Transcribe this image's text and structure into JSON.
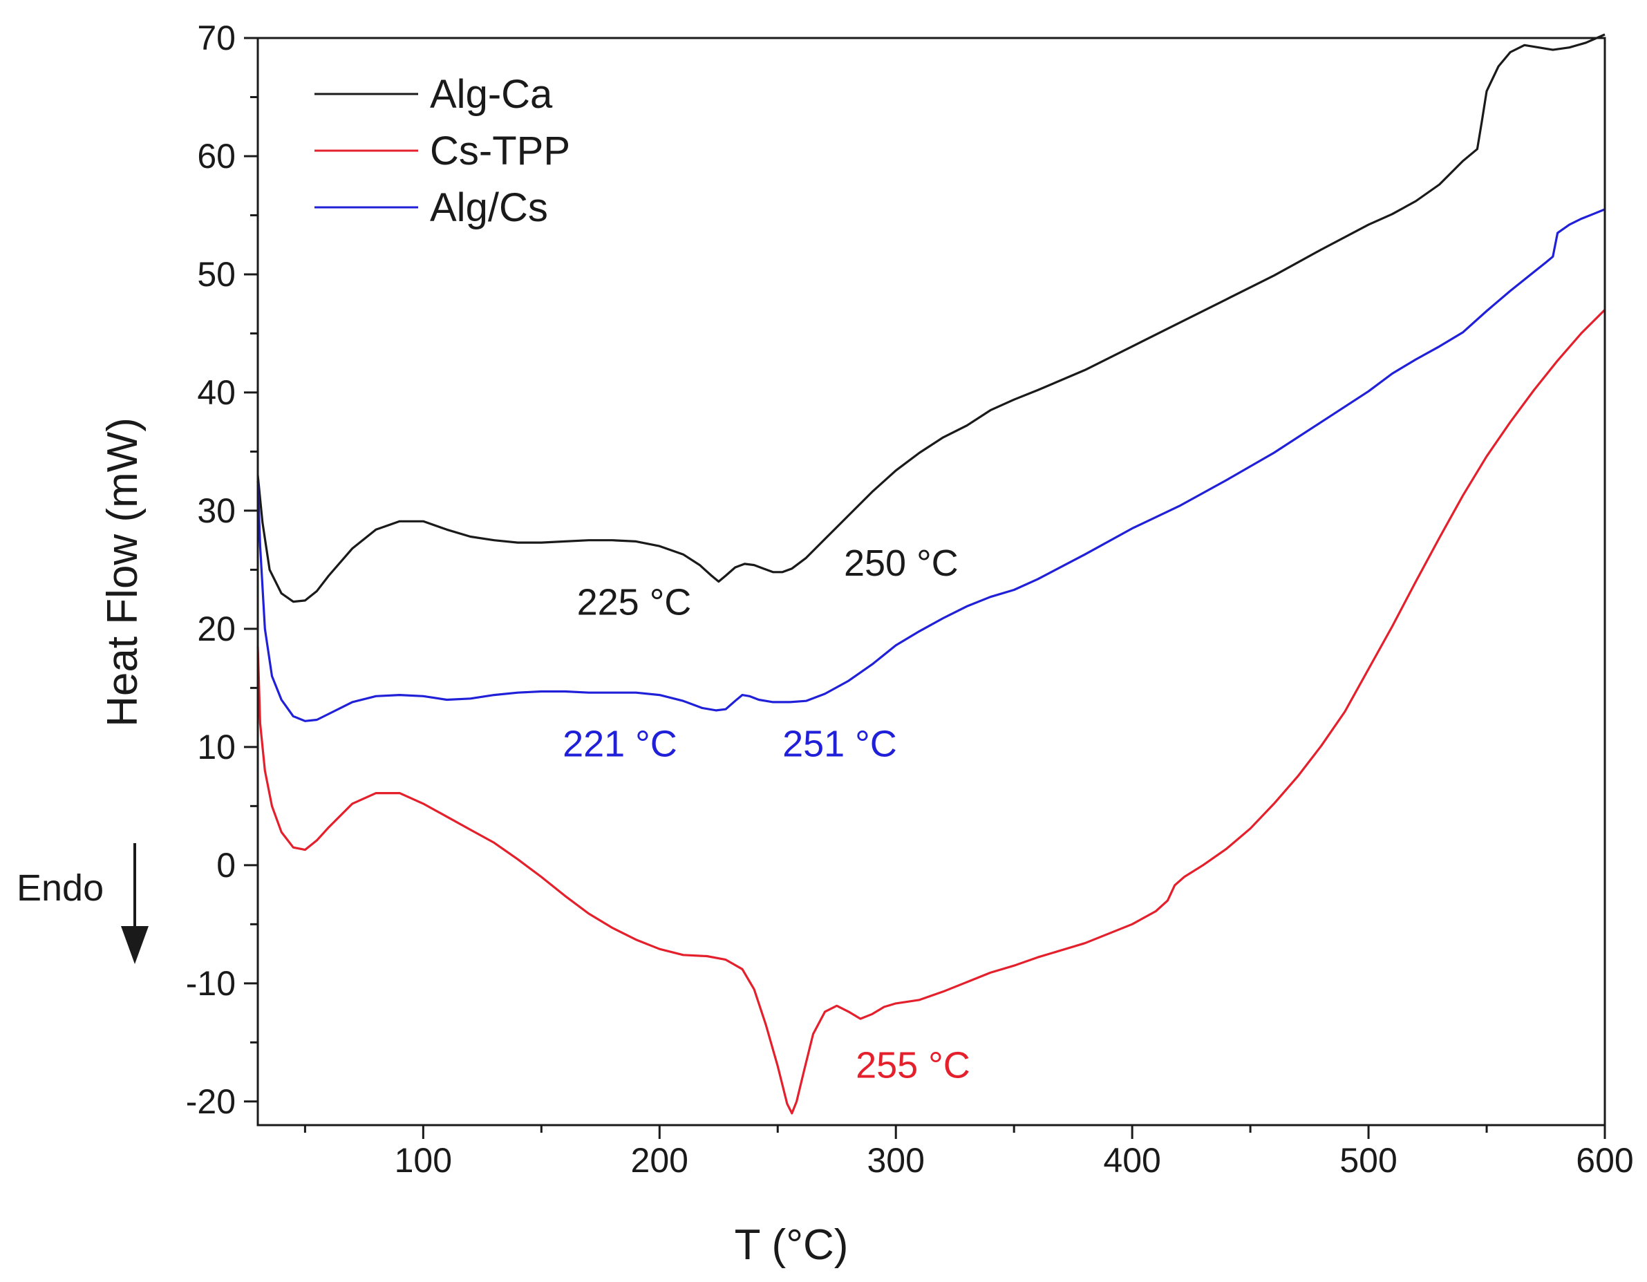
{
  "chart_data": {
    "type": "line",
    "title": "",
    "xlabel": "T (°C)",
    "ylabel": "Heat Flow (mW)",
    "xlim": [
      30,
      600
    ],
    "ylim": [
      -22,
      70
    ],
    "x_ticks": [
      "100",
      "200",
      "300",
      "400",
      "500",
      "600"
    ],
    "x_tick_values": [
      100,
      200,
      300,
      400,
      500,
      600
    ],
    "x_minor_ticks": [
      50,
      150,
      250,
      350,
      450,
      550
    ],
    "y_ticks": [
      "-20",
      "-10",
      "0",
      "10",
      "20",
      "30",
      "40",
      "50",
      "60",
      "70"
    ],
    "y_tick_values": [
      -20,
      -10,
      0,
      10,
      20,
      30,
      40,
      50,
      60,
      70
    ],
    "y_minor_ticks": [
      -15,
      -5,
      5,
      15,
      25,
      35,
      45,
      55,
      65
    ],
    "grid": false,
    "legend_position": "top-left",
    "series": [
      {
        "name": "Alg-Ca",
        "color": "#1a1a1a",
        "points": [
          [
            30,
            33
          ],
          [
            32,
            29
          ],
          [
            35,
            25
          ],
          [
            40,
            23
          ],
          [
            45,
            22.3
          ],
          [
            50,
            22.4
          ],
          [
            55,
            23.2
          ],
          [
            60,
            24.5
          ],
          [
            70,
            26.8
          ],
          [
            80,
            28.4
          ],
          [
            90,
            29.1
          ],
          [
            100,
            29.1
          ],
          [
            110,
            28.4
          ],
          [
            120,
            27.8
          ],
          [
            130,
            27.5
          ],
          [
            140,
            27.3
          ],
          [
            150,
            27.3
          ],
          [
            160,
            27.4
          ],
          [
            170,
            27.5
          ],
          [
            180,
            27.5
          ],
          [
            190,
            27.4
          ],
          [
            200,
            27
          ],
          [
            210,
            26.3
          ],
          [
            217,
            25.4
          ],
          [
            222,
            24.5
          ],
          [
            225,
            24
          ],
          [
            228,
            24.5
          ],
          [
            232,
            25.2
          ],
          [
            236,
            25.5
          ],
          [
            240,
            25.4
          ],
          [
            244,
            25.1
          ],
          [
            248,
            24.8
          ],
          [
            252,
            24.8
          ],
          [
            256,
            25.1
          ],
          [
            262,
            26
          ],
          [
            270,
            27.6
          ],
          [
            280,
            29.6
          ],
          [
            290,
            31.6
          ],
          [
            300,
            33.4
          ],
          [
            310,
            34.9
          ],
          [
            320,
            36.2
          ],
          [
            330,
            37.2
          ],
          [
            340,
            38.5
          ],
          [
            350,
            39.4
          ],
          [
            360,
            40.2
          ],
          [
            380,
            41.9
          ],
          [
            400,
            43.9
          ],
          [
            420,
            45.9
          ],
          [
            440,
            47.9
          ],
          [
            460,
            49.9
          ],
          [
            480,
            52.1
          ],
          [
            500,
            54.2
          ],
          [
            510,
            55.1
          ],
          [
            520,
            56.2
          ],
          [
            530,
            57.6
          ],
          [
            540,
            59.6
          ],
          [
            546,
            60.6
          ],
          [
            548,
            63
          ],
          [
            550,
            65.5
          ],
          [
            555,
            67.6
          ],
          [
            560,
            68.8
          ],
          [
            566,
            69.4
          ],
          [
            572,
            69.2
          ],
          [
            578,
            69
          ],
          [
            585,
            69.2
          ],
          [
            592,
            69.6
          ],
          [
            600,
            70.3
          ]
        ]
      },
      {
        "name": "Cs-TPP",
        "color": "#e4202c",
        "points": [
          [
            30,
            18.5
          ],
          [
            31,
            12
          ],
          [
            33,
            8
          ],
          [
            36,
            5
          ],
          [
            40,
            2.8
          ],
          [
            45,
            1.5
          ],
          [
            50,
            1.3
          ],
          [
            55,
            2.1
          ],
          [
            60,
            3.2
          ],
          [
            70,
            5.2
          ],
          [
            80,
            6.1
          ],
          [
            90,
            6.1
          ],
          [
            100,
            5.2
          ],
          [
            110,
            4.1
          ],
          [
            120,
            3
          ],
          [
            130,
            1.9
          ],
          [
            140,
            0.5
          ],
          [
            150,
            -1
          ],
          [
            160,
            -2.6
          ],
          [
            170,
            -4.1
          ],
          [
            180,
            -5.3
          ],
          [
            190,
            -6.3
          ],
          [
            200,
            -7.1
          ],
          [
            210,
            -7.6
          ],
          [
            220,
            -7.7
          ],
          [
            228,
            -8
          ],
          [
            235,
            -8.8
          ],
          [
            240,
            -10.5
          ],
          [
            245,
            -13.5
          ],
          [
            250,
            -17
          ],
          [
            254,
            -20.2
          ],
          [
            256,
            -21
          ],
          [
            258,
            -20
          ],
          [
            261,
            -17.5
          ],
          [
            265,
            -14.3
          ],
          [
            270,
            -12.4
          ],
          [
            275,
            -11.9
          ],
          [
            280,
            -12.4
          ],
          [
            285,
            -13
          ],
          [
            290,
            -12.6
          ],
          [
            295,
            -12
          ],
          [
            300,
            -11.7
          ],
          [
            310,
            -11.4
          ],
          [
            320,
            -10.7
          ],
          [
            330,
            -9.9
          ],
          [
            340,
            -9.1
          ],
          [
            350,
            -8.5
          ],
          [
            360,
            -7.8
          ],
          [
            380,
            -6.6
          ],
          [
            400,
            -5
          ],
          [
            410,
            -3.9
          ],
          [
            415,
            -3
          ],
          [
            418,
            -1.7
          ],
          [
            422,
            -1
          ],
          [
            430,
            0
          ],
          [
            440,
            1.4
          ],
          [
            450,
            3.1
          ],
          [
            460,
            5.2
          ],
          [
            470,
            7.5
          ],
          [
            480,
            10.1
          ],
          [
            490,
            13
          ],
          [
            500,
            16.6
          ],
          [
            510,
            20.2
          ],
          [
            520,
            24
          ],
          [
            530,
            27.7
          ],
          [
            540,
            31.3
          ],
          [
            550,
            34.6
          ],
          [
            560,
            37.5
          ],
          [
            570,
            40.2
          ],
          [
            580,
            42.7
          ],
          [
            590,
            45
          ],
          [
            600,
            47
          ]
        ]
      },
      {
        "name": "Alg/Cs",
        "color": "#2020d8",
        "points": [
          [
            30,
            32.5
          ],
          [
            31,
            27
          ],
          [
            33,
            20
          ],
          [
            36,
            16
          ],
          [
            40,
            14
          ],
          [
            45,
            12.6
          ],
          [
            50,
            12.2
          ],
          [
            55,
            12.3
          ],
          [
            60,
            12.8
          ],
          [
            70,
            13.8
          ],
          [
            80,
            14.3
          ],
          [
            90,
            14.4
          ],
          [
            100,
            14.3
          ],
          [
            110,
            14
          ],
          [
            120,
            14.1
          ],
          [
            130,
            14.4
          ],
          [
            140,
            14.6
          ],
          [
            150,
            14.7
          ],
          [
            160,
            14.7
          ],
          [
            170,
            14.6
          ],
          [
            180,
            14.6
          ],
          [
            190,
            14.6
          ],
          [
            200,
            14.4
          ],
          [
            210,
            13.9
          ],
          [
            218,
            13.3
          ],
          [
            224,
            13.1
          ],
          [
            228,
            13.2
          ],
          [
            232,
            13.9
          ],
          [
            235,
            14.4
          ],
          [
            238,
            14.3
          ],
          [
            242,
            14
          ],
          [
            248,
            13.8
          ],
          [
            255,
            13.8
          ],
          [
            262,
            13.9
          ],
          [
            270,
            14.5
          ],
          [
            280,
            15.6
          ],
          [
            290,
            17
          ],
          [
            300,
            18.6
          ],
          [
            310,
            19.8
          ],
          [
            320,
            20.9
          ],
          [
            330,
            21.9
          ],
          [
            340,
            22.7
          ],
          [
            350,
            23.3
          ],
          [
            360,
            24.2
          ],
          [
            380,
            26.3
          ],
          [
            400,
            28.5
          ],
          [
            420,
            30.4
          ],
          [
            440,
            32.6
          ],
          [
            460,
            34.9
          ],
          [
            480,
            37.5
          ],
          [
            500,
            40.1
          ],
          [
            510,
            41.6
          ],
          [
            520,
            42.8
          ],
          [
            530,
            43.9
          ],
          [
            540,
            45.1
          ],
          [
            550,
            46.9
          ],
          [
            560,
            48.6
          ],
          [
            570,
            50.2
          ],
          [
            575,
            51
          ],
          [
            578,
            51.5
          ],
          [
            580,
            53.5
          ],
          [
            585,
            54.2
          ],
          [
            590,
            54.7
          ],
          [
            595,
            55.1
          ],
          [
            600,
            55.5
          ]
        ]
      }
    ],
    "annotations": [
      {
        "text": "225 °C",
        "color": "#1a1a1a",
        "x": 165,
        "y": 21.2
      },
      {
        "text": "250 °C",
        "color": "#1a1a1a",
        "x": 278,
        "y": 24.5
      },
      {
        "text": "221 °C",
        "color": "#2020d8",
        "x": 159,
        "y": 9.2
      },
      {
        "text": "251 °C",
        "color": "#2020d8",
        "x": 252,
        "y": 9.2
      },
      {
        "text": "255 °C",
        "color": "#e4202c",
        "x": 283,
        "y": -18
      }
    ],
    "endo_marker": {
      "text": "Endo",
      "direction": "down"
    }
  }
}
